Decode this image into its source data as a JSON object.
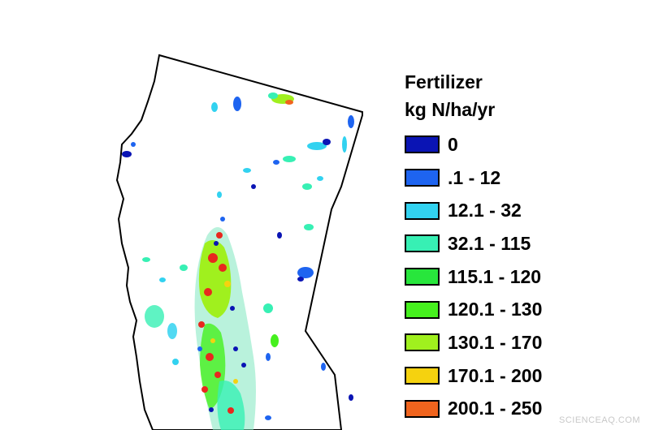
{
  "legend": {
    "title_line1": "Fertilizer",
    "title_line2": "kg N/ha/yr",
    "items": [
      {
        "label": "0",
        "color": "#0a14b4"
      },
      {
        "label": ".1 - 12",
        "color": "#1e64f0"
      },
      {
        "label": "12.1 - 32",
        "color": "#32d2f0"
      },
      {
        "label": "32.1 - 115",
        "color": "#37f0b4"
      },
      {
        "label": "115.1 - 120",
        "color": "#28e63c"
      },
      {
        "label": "120.1 - 130",
        "color": "#46f01e"
      },
      {
        "label": "130.1 - 170",
        "color": "#a0f01e"
      },
      {
        "label": "170.1 - 200",
        "color": "#f5d20f"
      },
      {
        "label": "200.1 - 250",
        "color": "#f0641e"
      }
    ]
  },
  "watermark": "SCIENCEAQ.COM"
}
